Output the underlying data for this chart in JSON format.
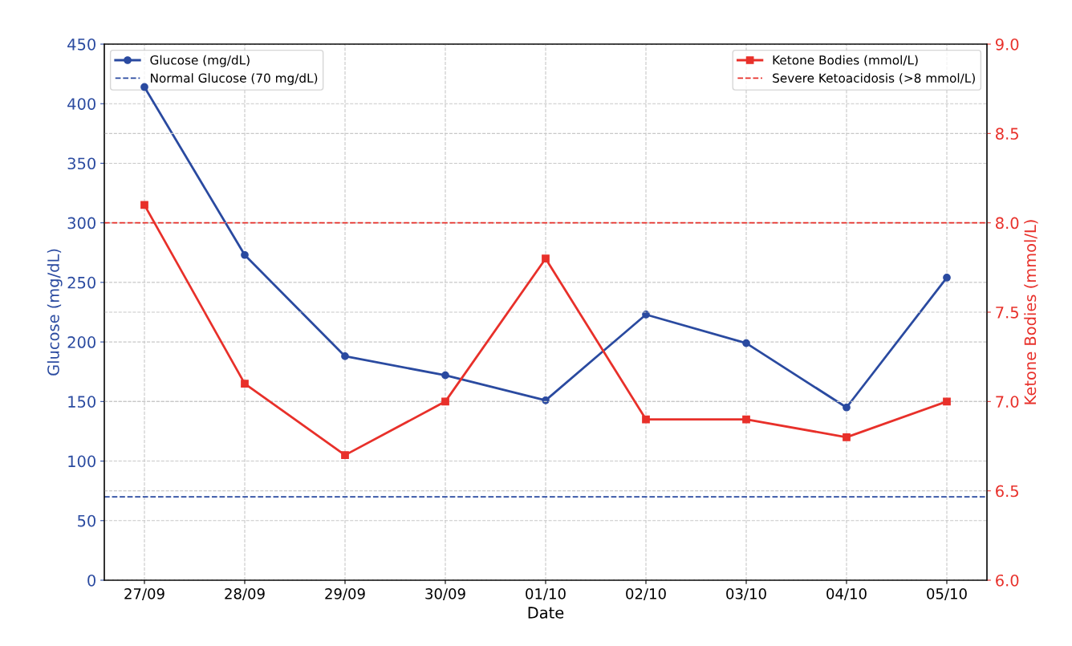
{
  "chart_data": {
    "type": "line",
    "xlabel": "Date",
    "ylabel": "Glucose (mg/dL)",
    "y2label": "Ketone Bodies (mmol/L)",
    "categories": [
      "27/09",
      "28/09",
      "29/09",
      "30/09",
      "01/10",
      "02/10",
      "03/10",
      "04/10",
      "05/10"
    ],
    "series": [
      {
        "name": "Glucose (mg/dL)",
        "color": "#2a4aa0",
        "marker": "circle",
        "values": [
          414,
          273,
          188,
          172,
          151,
          223,
          199,
          145,
          254
        ]
      },
      {
        "name": "Ketone Bodies (mmol/L)",
        "color": "#e8302a",
        "marker": "square",
        "axis": "y2",
        "values": [
          8.1,
          7.1,
          6.7,
          7.0,
          7.8,
          6.9,
          6.9,
          6.8,
          7.0
        ]
      }
    ],
    "ref_lines": [
      {
        "axis": "y",
        "value": 70,
        "label": "Normal Glucose (70 mg/dL)",
        "color": "#2a4aa0",
        "line_style": "dashed"
      },
      {
        "axis": "y2",
        "value": 8,
        "label": "Severe Ketoacidosis (>8 mmol/L)",
        "color": "#e8302a",
        "line_style": "dashed"
      }
    ],
    "ylim": [
      0,
      450
    ],
    "yticks": [
      0,
      50,
      100,
      150,
      200,
      250,
      300,
      350,
      400,
      450
    ],
    "y2lim": [
      6,
      9
    ],
    "y2ticks": [
      {
        "value": 6,
        "label": "6.0"
      },
      {
        "value": 6.5,
        "label": "6.5"
      },
      {
        "value": 7,
        "label": "7.0"
      },
      {
        "value": 7.5,
        "label": "7.5"
      },
      {
        "value": 8,
        "label": "8.0"
      },
      {
        "value": 8.5,
        "label": "8.5"
      },
      {
        "value": 9,
        "label": "9.0"
      }
    ],
    "grid": true,
    "legend": "top left",
    "line_style": "solid"
  }
}
